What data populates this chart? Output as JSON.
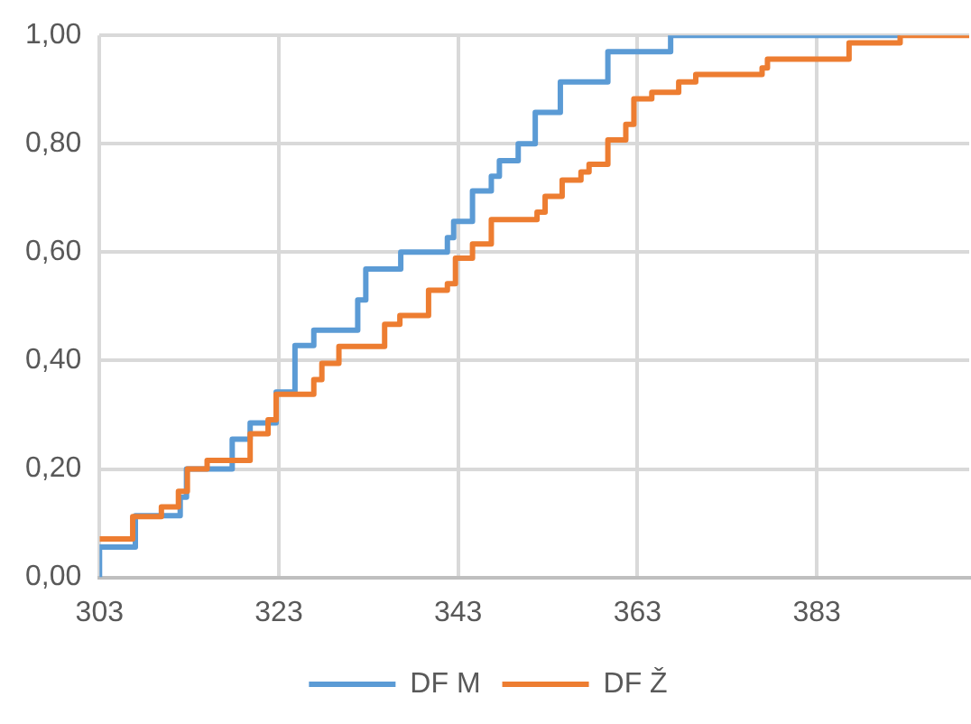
{
  "chart_data": {
    "type": "step",
    "xlim": [
      303,
      400
    ],
    "xticks": [
      303,
      323,
      343,
      363,
      383
    ],
    "ylim": [
      0,
      1
    ],
    "yticks": [
      {
        "value": 0,
        "label": "0,00"
      },
      {
        "value": 0.2,
        "label": "0,20"
      },
      {
        "value": 0.4,
        "label": "0,40"
      },
      {
        "value": 0.6,
        "label": "0,60"
      },
      {
        "value": 0.8,
        "label": "0,80"
      },
      {
        "value": 1,
        "label": "1,00"
      }
    ],
    "grid": true,
    "legend": "bottom",
    "series": [
      {
        "name": "DF M",
        "color": "#5b9bd5",
        "x": [
          303,
          303,
          307,
          312,
          312.7,
          317.8,
          319.8,
          322.7,
          324.8,
          326.9,
          331.8,
          332.7,
          336.6,
          341.8,
          342.5,
          344.6,
          346.7,
          347.6,
          349.7,
          351.6,
          354.4,
          359.7,
          366.7,
          392.3
        ],
        "values": [
          0,
          0.056,
          0.114,
          0.148,
          0.2,
          0.255,
          0.285,
          0.342,
          0.428,
          0.456,
          0.512,
          0.569,
          0.6,
          0.627,
          0.657,
          0.713,
          0.74,
          0.769,
          0.8,
          0.858,
          0.914,
          0.97,
          1,
          1
        ]
      },
      {
        "name": "DF Ž",
        "color": "#ed7d31",
        "x": [
          303,
          306.7,
          309.9,
          311.8,
          312.8,
          315,
          319.8,
          321.8,
          322.7,
          326.9,
          327.8,
          329.7,
          334.8,
          336.5,
          339.7,
          341.8,
          342.7,
          344.6,
          346.7,
          351.8,
          352.7,
          354.6,
          356.7,
          357.6,
          359.7,
          361.7,
          362.6,
          364.6,
          367.6,
          369.5,
          376.9,
          377.5,
          386.6,
          392.3,
          400
        ],
        "values": [
          0.071,
          0.112,
          0.13,
          0.159,
          0.2,
          0.216,
          0.265,
          0.291,
          0.338,
          0.365,
          0.395,
          0.426,
          0.467,
          0.483,
          0.53,
          0.542,
          0.589,
          0.615,
          0.66,
          0.674,
          0.703,
          0.733,
          0.748,
          0.762,
          0.807,
          0.836,
          0.883,
          0.895,
          0.914,
          0.928,
          0.94,
          0.956,
          0.986,
          1,
          1
        ]
      }
    ]
  }
}
